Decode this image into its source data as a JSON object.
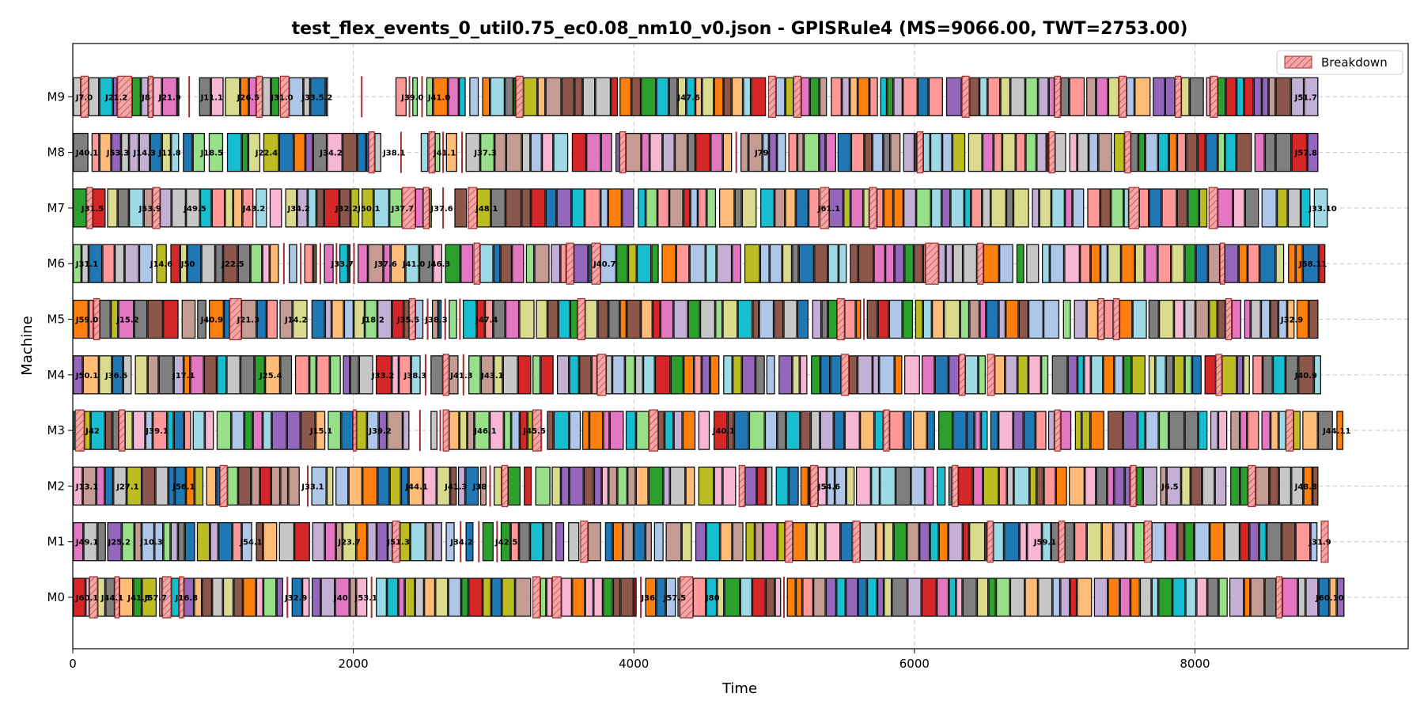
{
  "chart_data": {
    "type": "gantt",
    "title": "test_flex_events_0_util0.75_ec0.08_nm10_v0.json - GPISRule4 (MS=9066.00, TWT=2753.00)",
    "xlabel": "Time",
    "ylabel": "Machine",
    "xlim": [
      0,
      9520
    ],
    "xticks": [
      0,
      2000,
      4000,
      6000,
      8000
    ],
    "machines": [
      "M0",
      "M1",
      "M2",
      "M3",
      "M4",
      "M5",
      "M6",
      "M7",
      "M8",
      "M9"
    ],
    "grid": true,
    "legend": {
      "position": "top-right",
      "label": "Breakdown"
    },
    "palette": [
      "#1f77b4",
      "#aec7e8",
      "#ff7f0e",
      "#ffbb78",
      "#2ca02c",
      "#98df8a",
      "#d62728",
      "#ff9896",
      "#9467bd",
      "#c5b0d5",
      "#8c564b",
      "#c49c94",
      "#e377c2",
      "#f7b6d2",
      "#7f7f7f",
      "#c7c7c7",
      "#bcbd22",
      "#dbdb8d",
      "#17becf",
      "#9edae5"
    ],
    "breakdown_color": "#f4a6a6",
    "breakdown_edge": "#a03030",
    "rows": [
      {
        "machine": "M0",
        "breakdowns": [
          [
            120,
            175
          ],
          [
            300,
            330
          ],
          [
            640,
            700
          ],
          [
            760,
            790
          ],
          [
            3280,
            3330
          ],
          [
            3420,
            3480
          ],
          [
            4330,
            4420
          ],
          [
            8580,
            8620
          ]
        ],
        "gaps": [
          [
            1500,
            1560
          ],
          [
            2100,
            2160
          ],
          [
            4020,
            4080
          ],
          [
            5050,
            5090
          ]
        ],
        "labels": [
          {
            "t": 10,
            "text": "J60.1"
          },
          {
            "t": 190,
            "text": "J44.1"
          },
          {
            "t": 380,
            "text": "J41.5"
          },
          {
            "t": 500,
            "text": "J57.7"
          },
          {
            "t": 720,
            "text": "J16.8"
          },
          {
            "t": 1500,
            "text": "J32.9"
          },
          {
            "t": 1850,
            "text": "J40"
          },
          {
            "t": 2000,
            "text": "J53.1"
          },
          {
            "t": 4040,
            "text": "J36"
          },
          {
            "t": 4200,
            "text": "J57.5"
          },
          {
            "t": 4500,
            "text": "J80"
          },
          {
            "t": 8850,
            "text": "J60.10"
          }
        ],
        "end": 9066
      },
      {
        "machine": "M1",
        "breakdowns": [
          [
            2280,
            2330
          ],
          [
            3620,
            3670
          ],
          [
            5080,
            5130
          ],
          [
            5560,
            5610
          ],
          [
            6520,
            6560
          ],
          [
            7030,
            7070
          ],
          [
            7640,
            7690
          ],
          [
            8900,
            8950
          ]
        ],
        "gaps": [
          [
            2730,
            2800
          ],
          [
            2870,
            2920
          ],
          [
            3000,
            3050
          ]
        ],
        "labels": [
          {
            "t": 10,
            "text": "J49.1"
          },
          {
            "t": 240,
            "text": "J25.2"
          },
          {
            "t": 470,
            "text": "J10.3"
          },
          {
            "t": 1180,
            "text": "J54.1"
          },
          {
            "t": 1880,
            "text": "J23.7"
          },
          {
            "t": 2230,
            "text": "J51.3"
          },
          {
            "t": 2680,
            "text": "J34.2"
          },
          {
            "t": 3000,
            "text": "J42.5"
          },
          {
            "t": 6840,
            "text": "J59.1"
          },
          {
            "t": 8800,
            "text": "J31.9"
          }
        ],
        "end": 8960
      },
      {
        "machine": "M2",
        "breakdowns": [
          [
            1050,
            1100
          ],
          [
            3060,
            3100
          ],
          [
            4750,
            4790
          ],
          [
            5260,
            5310
          ],
          [
            6270,
            6310
          ],
          [
            7540,
            7580
          ],
          [
            8380,
            8430
          ]
        ],
        "gaps": [
          [
            1650,
            1700
          ],
          [
            2950,
            3000
          ]
        ],
        "labels": [
          {
            "t": 10,
            "text": "J13.1"
          },
          {
            "t": 300,
            "text": "J27.1"
          },
          {
            "t": 700,
            "text": "J56.1"
          },
          {
            "t": 1620,
            "text": "J33.1"
          },
          {
            "t": 2360,
            "text": "J44.1"
          },
          {
            "t": 2640,
            "text": "J41.3"
          },
          {
            "t": 2840,
            "text": "J38"
          },
          {
            "t": 5300,
            "text": "J54.6"
          },
          {
            "t": 7750,
            "text": "J6.5"
          },
          {
            "t": 8700,
            "text": "J48.8"
          }
        ],
        "end": 8880
      },
      {
        "machine": "M3",
        "breakdowns": [
          [
            20,
            80
          ],
          [
            330,
            370
          ],
          [
            2000,
            2020
          ],
          [
            2640,
            2680
          ],
          [
            3280,
            3340
          ],
          [
            4110,
            4170
          ],
          [
            5780,
            5820
          ],
          [
            7000,
            7040
          ],
          [
            8650,
            8700
          ]
        ],
        "gaps": [
          [
            2400,
            2550
          ],
          [
            2600,
            2640
          ],
          [
            3300,
            3380
          ]
        ],
        "labels": [
          {
            "t": 80,
            "text": "J42"
          },
          {
            "t": 510,
            "text": "J39.1"
          },
          {
            "t": 1680,
            "text": "J15.1"
          },
          {
            "t": 2100,
            "text": "J39.2"
          },
          {
            "t": 2850,
            "text": "J46.1"
          },
          {
            "t": 3200,
            "text": "J45.5"
          },
          {
            "t": 4550,
            "text": "J40.1"
          },
          {
            "t": 8900,
            "text": "J44.11"
          }
        ],
        "end": 9066
      },
      {
        "machine": "M4",
        "breakdowns": [
          [
            2640,
            2680
          ],
          [
            3740,
            3800
          ],
          [
            5480,
            5530
          ],
          [
            6320,
            6360
          ],
          [
            6520,
            6570
          ],
          [
            8150,
            8190
          ]
        ],
        "gaps": [
          [
            2480,
            2550
          ],
          [
            2750,
            2820
          ]
        ],
        "labels": [
          {
            "t": 10,
            "text": "J50.1"
          },
          {
            "t": 220,
            "text": "J36.5"
          },
          {
            "t": 700,
            "text": "J17.1"
          },
          {
            "t": 1320,
            "text": "J25.4"
          },
          {
            "t": 2120,
            "text": "J33.2"
          },
          {
            "t": 2350,
            "text": "J38.3"
          },
          {
            "t": 2680,
            "text": "J41.3"
          },
          {
            "t": 2900,
            "text": "J43.1"
          },
          {
            "t": 8700,
            "text": "J40.9"
          }
        ],
        "end": 8900
      },
      {
        "machine": "M5",
        "breakdowns": [
          [
            150,
            190
          ],
          [
            1120,
            1200
          ],
          [
            2400,
            2440
          ],
          [
            3600,
            3650
          ],
          [
            5450,
            5500
          ],
          [
            7310,
            7350
          ],
          [
            7420,
            7460
          ],
          [
            8220,
            8260
          ]
        ],
        "gaps": [
          [
            2500,
            2560
          ],
          [
            2630,
            2680
          ],
          [
            2740,
            2780
          ],
          [
            5620,
            5660
          ]
        ],
        "labels": [
          {
            "t": 10,
            "text": "J59.0"
          },
          {
            "t": 300,
            "text": "J15.2"
          },
          {
            "t": 900,
            "text": "J40.9"
          },
          {
            "t": 1160,
            "text": "J21.3"
          },
          {
            "t": 1500,
            "text": "J14.2"
          },
          {
            "t": 2050,
            "text": "J18.2"
          },
          {
            "t": 2300,
            "text": "J35.5"
          },
          {
            "t": 2500,
            "text": "J38.3"
          },
          {
            "t": 2860,
            "text": "J47.4"
          },
          {
            "t": 8600,
            "text": "J32.9"
          }
        ],
        "end": 8880
      },
      {
        "machine": "M6",
        "breakdowns": [
          [
            2860,
            2900
          ],
          [
            3520,
            3570
          ],
          [
            3700,
            3760
          ],
          [
            6080,
            6170
          ],
          [
            6450,
            6490
          ],
          [
            8180,
            8210
          ]
        ],
        "gaps": [
          [
            1470,
            1540
          ],
          [
            1600,
            1650
          ],
          [
            1740,
            1790
          ],
          [
            1860,
            1900
          ],
          [
            1980,
            2030
          ]
        ],
        "labels": [
          {
            "t": 10,
            "text": "J31.1"
          },
          {
            "t": 540,
            "text": "J14.6"
          },
          {
            "t": 760,
            "text": "J50"
          },
          {
            "t": 1050,
            "text": "J22.5"
          },
          {
            "t": 1830,
            "text": "J33.7"
          },
          {
            "t": 2140,
            "text": "J37.6"
          },
          {
            "t": 2340,
            "text": "J41.0"
          },
          {
            "t": 2520,
            "text": "J46.3"
          },
          {
            "t": 3700,
            "text": "J40.7"
          },
          {
            "t": 8730,
            "text": "J58.11"
          }
        ],
        "end": 8930
      },
      {
        "machine": "M7",
        "breakdowns": [
          [
            100,
            140
          ],
          [
            570,
            620
          ],
          [
            2350,
            2440
          ],
          [
            2500,
            2540
          ],
          [
            2820,
            2880
          ],
          [
            5330,
            5390
          ],
          [
            5680,
            5730
          ],
          [
            7530,
            7600
          ],
          [
            8100,
            8160
          ]
        ],
        "gaps": [
          [
            2560,
            2720
          ]
        ],
        "labels": [
          {
            "t": 50,
            "text": "J31.5"
          },
          {
            "t": 460,
            "text": "J53.9"
          },
          {
            "t": 780,
            "text": "J49.5"
          },
          {
            "t": 1200,
            "text": "J43.2"
          },
          {
            "t": 1520,
            "text": "J34.2"
          },
          {
            "t": 1860,
            "text": "J32.2"
          },
          {
            "t": 2020,
            "text": "J50.1"
          },
          {
            "t": 2260,
            "text": "J37.7"
          },
          {
            "t": 2540,
            "text": "J37.6"
          },
          {
            "t": 2860,
            "text": "J48.1"
          },
          {
            "t": 5300,
            "text": "J61.1"
          },
          {
            "t": 8800,
            "text": "J33.10"
          }
        ],
        "end": 8960
      },
      {
        "machine": "M8",
        "breakdowns": [
          [
            2110,
            2150
          ],
          [
            2540,
            2580
          ],
          [
            3900,
            3940
          ],
          [
            6020,
            6060
          ],
          [
            6960,
            7000
          ],
          [
            7500,
            7540
          ]
        ],
        "gaps": [
          [
            2200,
            2480
          ],
          [
            2620,
            2660
          ],
          [
            2750,
            2800
          ],
          [
            4700,
            4760
          ]
        ],
        "labels": [
          {
            "t": 10,
            "text": "J40.1"
          },
          {
            "t": 230,
            "text": "J53.3"
          },
          {
            "t": 420,
            "text": "J14.3"
          },
          {
            "t": 600,
            "text": "J11.8"
          },
          {
            "t": 900,
            "text": "J18.5"
          },
          {
            "t": 1290,
            "text": "J22.4"
          },
          {
            "t": 1750,
            "text": "J34.2"
          },
          {
            "t": 2200,
            "text": "J38.1"
          },
          {
            "t": 2560,
            "text": "J41.1"
          },
          {
            "t": 2850,
            "text": "J37.3"
          },
          {
            "t": 4850,
            "text": "J79"
          },
          {
            "t": 8700,
            "text": "J57.8"
          }
        ],
        "end": 8880
      },
      {
        "machine": "M9",
        "breakdowns": [
          [
            60,
            110
          ],
          [
            320,
            420
          ],
          [
            540,
            570
          ],
          [
            1310,
            1350
          ],
          [
            1480,
            1540
          ],
          [
            3160,
            3210
          ],
          [
            4960,
            5010
          ],
          [
            5140,
            5190
          ],
          [
            6340,
            6390
          ],
          [
            7000,
            7040
          ],
          [
            7460,
            7510
          ],
          [
            7860,
            7900
          ],
          [
            8110,
            8160
          ]
        ],
        "gaps": [
          [
            760,
            900
          ],
          [
            1820,
            2300
          ],
          [
            2380,
            2420
          ],
          [
            2460,
            2520
          ]
        ],
        "labels": [
          {
            "t": 10,
            "text": "J7.0"
          },
          {
            "t": 220,
            "text": "J21.2"
          },
          {
            "t": 480,
            "text": "J8"
          },
          {
            "t": 600,
            "text": "J21.9"
          },
          {
            "t": 900,
            "text": "J11.1"
          },
          {
            "t": 1160,
            "text": "J26.5"
          },
          {
            "t": 1400,
            "text": "J31.0"
          },
          {
            "t": 1620,
            "text": "J33.5.2"
          },
          {
            "t": 2330,
            "text": "J39.0"
          },
          {
            "t": 2520,
            "text": "J41.0"
          },
          {
            "t": 4300,
            "text": "J47.6"
          },
          {
            "t": 8700,
            "text": "J51.7"
          }
        ],
        "end": 8880
      }
    ]
  }
}
